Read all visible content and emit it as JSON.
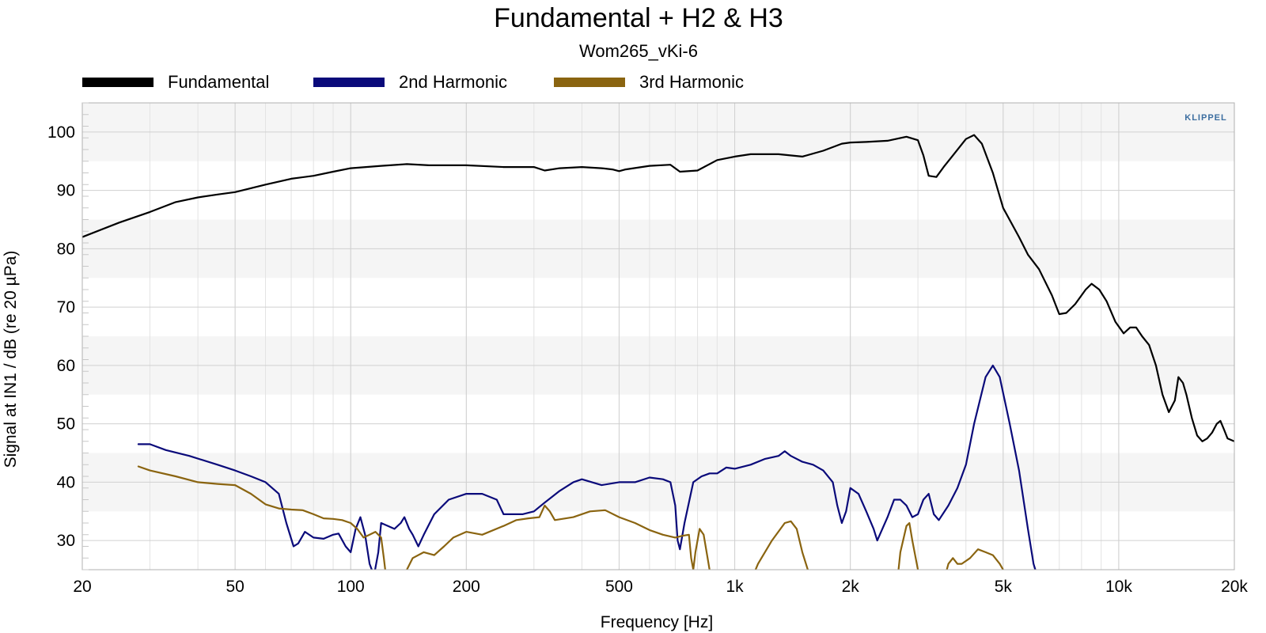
{
  "chart_data": {
    "type": "line",
    "title": "Fundamental + H2 & H3",
    "subtitle": "Wom265_vKi-6",
    "xlabel": "Frequency [Hz]",
    "ylabel": "Signal at IN1 / dB (re 20 µPa)",
    "xscale": "log",
    "xlim": [
      20,
      20000
    ],
    "ylim": [
      25,
      105
    ],
    "grid": true,
    "legend_position": "top",
    "logo": "KLIPPEL",
    "xticks": [
      {
        "value": 20,
        "label": "20"
      },
      {
        "value": 50,
        "label": "50"
      },
      {
        "value": 100,
        "label": "100"
      },
      {
        "value": 200,
        "label": "200"
      },
      {
        "value": 500,
        "label": "500"
      },
      {
        "value": 1000,
        "label": "1k"
      },
      {
        "value": 2000,
        "label": "2k"
      },
      {
        "value": 5000,
        "label": "5k"
      },
      {
        "value": 10000,
        "label": "10k"
      },
      {
        "value": 20000,
        "label": "20k"
      }
    ],
    "yticks": [
      30,
      40,
      50,
      60,
      70,
      80,
      90,
      100
    ],
    "series": [
      {
        "name": "Fundamental",
        "color": "#000000",
        "points": [
          [
            20,
            82
          ],
          [
            25,
            84.5
          ],
          [
            30,
            86.3
          ],
          [
            35,
            88
          ],
          [
            40,
            88.8
          ],
          [
            45,
            89.3
          ],
          [
            50,
            89.7
          ],
          [
            60,
            91
          ],
          [
            70,
            92
          ],
          [
            80,
            92.5
          ],
          [
            90,
            93.2
          ],
          [
            100,
            93.8
          ],
          [
            120,
            94.2
          ],
          [
            140,
            94.5
          ],
          [
            160,
            94.3
          ],
          [
            200,
            94.3
          ],
          [
            250,
            94
          ],
          [
            300,
            94
          ],
          [
            320,
            93.4
          ],
          [
            350,
            93.8
          ],
          [
            400,
            94
          ],
          [
            450,
            93.8
          ],
          [
            480,
            93.6
          ],
          [
            500,
            93.3
          ],
          [
            520,
            93.6
          ],
          [
            600,
            94.2
          ],
          [
            680,
            94.4
          ],
          [
            720,
            93.2
          ],
          [
            800,
            93.4
          ],
          [
            900,
            95.2
          ],
          [
            1000,
            95.8
          ],
          [
            1100,
            96.2
          ],
          [
            1300,
            96.2
          ],
          [
            1500,
            95.8
          ],
          [
            1700,
            96.8
          ],
          [
            1900,
            98
          ],
          [
            2000,
            98.2
          ],
          [
            2200,
            98.3
          ],
          [
            2500,
            98.5
          ],
          [
            2800,
            99.2
          ],
          [
            3000,
            98.6
          ],
          [
            3100,
            96
          ],
          [
            3200,
            92.5
          ],
          [
            3350,
            92.3
          ],
          [
            3500,
            94
          ],
          [
            3700,
            96
          ],
          [
            4000,
            98.8
          ],
          [
            4200,
            99.5
          ],
          [
            4400,
            98
          ],
          [
            4700,
            93
          ],
          [
            5000,
            87
          ],
          [
            5500,
            82
          ],
          [
            5800,
            79
          ],
          [
            6200,
            76.5
          ],
          [
            6700,
            72
          ],
          [
            7000,
            68.8
          ],
          [
            7300,
            69
          ],
          [
            7700,
            70.5
          ],
          [
            8200,
            73
          ],
          [
            8500,
            74
          ],
          [
            8900,
            73
          ],
          [
            9300,
            71
          ],
          [
            9800,
            67.5
          ],
          [
            10300,
            65.5
          ],
          [
            10700,
            66.5
          ],
          [
            11100,
            66.5
          ],
          [
            11500,
            65
          ],
          [
            12000,
            63.5
          ],
          [
            12500,
            60
          ],
          [
            13000,
            55
          ],
          [
            13500,
            52
          ],
          [
            14000,
            54
          ],
          [
            14300,
            58
          ],
          [
            14700,
            57
          ],
          [
            15000,
            55
          ],
          [
            15500,
            51
          ],
          [
            16000,
            48
          ],
          [
            16500,
            47
          ],
          [
            17000,
            47.5
          ],
          [
            17500,
            48.5
          ],
          [
            18000,
            50
          ],
          [
            18400,
            50.5
          ],
          [
            18800,
            49
          ],
          [
            19200,
            47.5
          ],
          [
            20000,
            47
          ]
        ]
      },
      {
        "name": "2nd Harmonic",
        "color": "#0a0a7a",
        "points": [
          [
            28,
            46.5
          ],
          [
            30,
            46.5
          ],
          [
            33,
            45.5
          ],
          [
            38,
            44.5
          ],
          [
            45,
            43
          ],
          [
            50,
            42
          ],
          [
            55,
            41
          ],
          [
            60,
            40
          ],
          [
            65,
            38
          ],
          [
            68,
            33
          ],
          [
            71,
            29
          ],
          [
            73,
            29.5
          ],
          [
            76,
            31.5
          ],
          [
            80,
            30.5
          ],
          [
            85,
            30.3
          ],
          [
            90,
            31
          ],
          [
            93,
            31.2
          ],
          [
            97,
            29
          ],
          [
            100,
            28
          ],
          [
            103,
            32
          ],
          [
            106,
            34
          ],
          [
            109,
            31
          ],
          [
            112,
            26
          ],
          [
            115,
            24
          ],
          [
            118,
            28
          ],
          [
            120,
            33
          ],
          [
            125,
            32.5
          ],
          [
            130,
            32
          ],
          [
            135,
            33
          ],
          [
            138,
            34
          ],
          [
            142,
            32
          ],
          [
            145,
            31
          ],
          [
            150,
            29
          ],
          [
            155,
            31
          ],
          [
            165,
            34.5
          ],
          [
            180,
            37
          ],
          [
            200,
            38
          ],
          [
            220,
            38
          ],
          [
            240,
            37
          ],
          [
            250,
            34.5
          ],
          [
            280,
            34.5
          ],
          [
            300,
            35
          ],
          [
            320,
            36.5
          ],
          [
            350,
            38.5
          ],
          [
            380,
            40
          ],
          [
            400,
            40.5
          ],
          [
            450,
            39.5
          ],
          [
            500,
            40
          ],
          [
            550,
            40
          ],
          [
            600,
            40.8
          ],
          [
            650,
            40.5
          ],
          [
            680,
            40
          ],
          [
            700,
            36
          ],
          [
            710,
            30
          ],
          [
            720,
            28.5
          ],
          [
            740,
            33
          ],
          [
            780,
            40
          ],
          [
            820,
            41
          ],
          [
            860,
            41.5
          ],
          [
            900,
            41.5
          ],
          [
            950,
            42.5
          ],
          [
            1000,
            42.3
          ],
          [
            1100,
            43
          ],
          [
            1200,
            44
          ],
          [
            1300,
            44.5
          ],
          [
            1350,
            45.3
          ],
          [
            1400,
            44.5
          ],
          [
            1500,
            43.5
          ],
          [
            1600,
            43
          ],
          [
            1700,
            42
          ],
          [
            1800,
            40
          ],
          [
            1850,
            36
          ],
          [
            1900,
            33
          ],
          [
            1950,
            35
          ],
          [
            2000,
            39
          ],
          [
            2100,
            38
          ],
          [
            2200,
            35
          ],
          [
            2300,
            32
          ],
          [
            2350,
            30
          ],
          [
            2500,
            34
          ],
          [
            2600,
            37
          ],
          [
            2700,
            37
          ],
          [
            2800,
            36
          ],
          [
            2900,
            34
          ],
          [
            3000,
            34.5
          ],
          [
            3100,
            37
          ],
          [
            3200,
            38
          ],
          [
            3300,
            34.5
          ],
          [
            3400,
            33.5
          ],
          [
            3600,
            36
          ],
          [
            3800,
            39
          ],
          [
            4000,
            43
          ],
          [
            4200,
            50
          ],
          [
            4500,
            58
          ],
          [
            4700,
            60
          ],
          [
            4900,
            58
          ],
          [
            5200,
            50
          ],
          [
            5500,
            42
          ],
          [
            5800,
            32
          ],
          [
            6000,
            26
          ],
          [
            6200,
            23
          ]
        ]
      },
      {
        "name": "3rd Harmonic",
        "color": "#8a6410",
        "points": [
          [
            28,
            42.7
          ],
          [
            30,
            42
          ],
          [
            35,
            41
          ],
          [
            40,
            40
          ],
          [
            45,
            39.7
          ],
          [
            50,
            39.5
          ],
          [
            55,
            38
          ],
          [
            60,
            36.2
          ],
          [
            65,
            35.5
          ],
          [
            70,
            35.3
          ],
          [
            75,
            35.2
          ],
          [
            80,
            34.5
          ],
          [
            85,
            33.8
          ],
          [
            90,
            33.7
          ],
          [
            95,
            33.5
          ],
          [
            100,
            33
          ],
          [
            104,
            32
          ],
          [
            108,
            30.5
          ],
          [
            112,
            31
          ],
          [
            116,
            31.5
          ],
          [
            120,
            30.5
          ],
          [
            122,
            27
          ],
          [
            124,
            23
          ],
          [
            136,
            23
          ],
          [
            140,
            25
          ],
          [
            145,
            27
          ],
          [
            155,
            28
          ],
          [
            165,
            27.5
          ],
          [
            175,
            29
          ],
          [
            185,
            30.5
          ],
          [
            200,
            31.5
          ],
          [
            220,
            31
          ],
          [
            250,
            32.5
          ],
          [
            270,
            33.5
          ],
          [
            290,
            33.8
          ],
          [
            310,
            34
          ],
          [
            320,
            36
          ],
          [
            330,
            35
          ],
          [
            340,
            33.5
          ],
          [
            380,
            34
          ],
          [
            420,
            35
          ],
          [
            460,
            35.2
          ],
          [
            500,
            34
          ],
          [
            550,
            33
          ],
          [
            600,
            31.8
          ],
          [
            650,
            31
          ],
          [
            700,
            30.5
          ],
          [
            730,
            30.8
          ],
          [
            760,
            31
          ],
          [
            770,
            27
          ],
          [
            780,
            25
          ],
          [
            790,
            28
          ],
          [
            810,
            32
          ],
          [
            830,
            31
          ],
          [
            850,
            27
          ],
          [
            870,
            23
          ],
          [
            1100,
            23
          ],
          [
            1150,
            26
          ],
          [
            1250,
            30
          ],
          [
            1350,
            33
          ],
          [
            1400,
            33.3
          ],
          [
            1450,
            32
          ],
          [
            1500,
            28
          ],
          [
            1550,
            25
          ],
          [
            1600,
            23
          ],
          [
            2650,
            23
          ],
          [
            2700,
            28
          ],
          [
            2800,
            32.5
          ],
          [
            2850,
            33
          ],
          [
            2900,
            30
          ],
          [
            3000,
            25
          ],
          [
            3050,
            23
          ],
          [
            3500,
            23
          ],
          [
            3600,
            26
          ],
          [
            3700,
            27
          ],
          [
            3800,
            26
          ],
          [
            3900,
            26
          ],
          [
            4100,
            27
          ],
          [
            4300,
            28.5
          ],
          [
            4500,
            28
          ],
          [
            4700,
            27.5
          ],
          [
            4900,
            26
          ],
          [
            5000,
            25
          ],
          [
            5100,
            23
          ]
        ]
      }
    ]
  }
}
